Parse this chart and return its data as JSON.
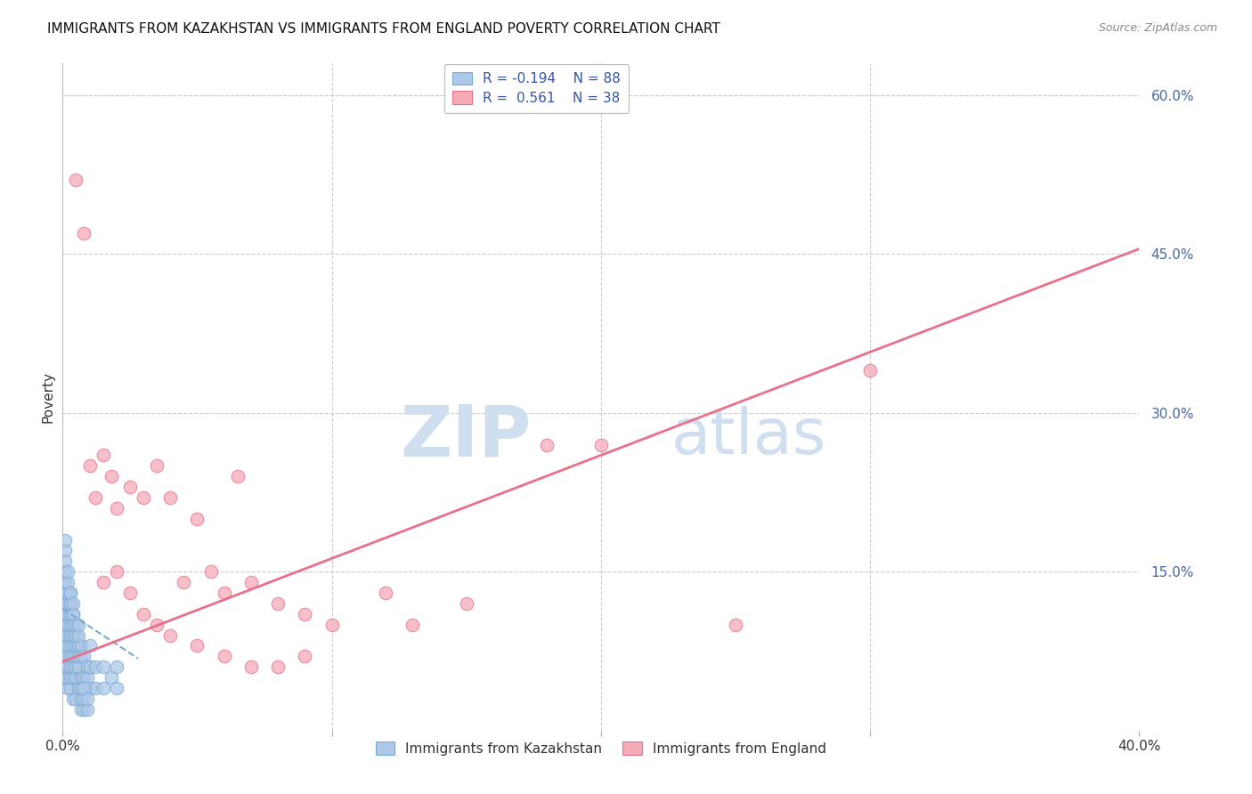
{
  "title": "IMMIGRANTS FROM KAZAKHSTAN VS IMMIGRANTS FROM ENGLAND POVERTY CORRELATION CHART",
  "source": "Source: ZipAtlas.com",
  "ylabel": "Poverty",
  "yticks": [
    0.0,
    0.15,
    0.3,
    0.45,
    0.6
  ],
  "ytick_labels": [
    "",
    "15.0%",
    "30.0%",
    "45.0%",
    "60.0%"
  ],
  "xlim": [
    0.0,
    0.4
  ],
  "ylim": [
    0.0,
    0.63
  ],
  "series1_label": "Immigrants from Kazakhstan",
  "series2_label": "Immigrants from England",
  "color1": "#adc8e8",
  "color2": "#f5aab8",
  "color1_edge": "#7aaad0",
  "color2_edge": "#e8708a",
  "trend1_color": "#7aaad0",
  "trend2_color": "#e8708a",
  "watermark_zip": "ZIP",
  "watermark_atlas": "atlas",
  "watermark_color": "#d0dff0",
  "title_fontsize": 11,
  "background_color": "#ffffff",
  "grid_color": "#cccccc",
  "kazakh_x": [
    0.001,
    0.001,
    0.001,
    0.001,
    0.001,
    0.001,
    0.001,
    0.001,
    0.001,
    0.001,
    0.002,
    0.002,
    0.002,
    0.002,
    0.002,
    0.002,
    0.002,
    0.002,
    0.002,
    0.002,
    0.003,
    0.003,
    0.003,
    0.003,
    0.003,
    0.003,
    0.003,
    0.003,
    0.003,
    0.003,
    0.004,
    0.004,
    0.004,
    0.004,
    0.004,
    0.004,
    0.004,
    0.004,
    0.005,
    0.005,
    0.005,
    0.005,
    0.005,
    0.005,
    0.006,
    0.006,
    0.006,
    0.006,
    0.007,
    0.007,
    0.007,
    0.008,
    0.008,
    0.009,
    0.009,
    0.01,
    0.01,
    0.01,
    0.012,
    0.012,
    0.015,
    0.015,
    0.018,
    0.02,
    0.02,
    0.001,
    0.001,
    0.001,
    0.001,
    0.001,
    0.002,
    0.002,
    0.002,
    0.003,
    0.003,
    0.004,
    0.004,
    0.005,
    0.006,
    0.006,
    0.007,
    0.007,
    0.007,
    0.008,
    0.008,
    0.008,
    0.009,
    0.009
  ],
  "kazakh_y": [
    0.05,
    0.06,
    0.07,
    0.08,
    0.09,
    0.1,
    0.11,
    0.12,
    0.13,
    0.14,
    0.04,
    0.05,
    0.06,
    0.07,
    0.08,
    0.09,
    0.1,
    0.11,
    0.12,
    0.13,
    0.04,
    0.05,
    0.06,
    0.07,
    0.08,
    0.09,
    0.1,
    0.11,
    0.12,
    0.13,
    0.03,
    0.05,
    0.06,
    0.07,
    0.08,
    0.09,
    0.1,
    0.11,
    0.03,
    0.05,
    0.06,
    0.07,
    0.08,
    0.09,
    0.04,
    0.06,
    0.07,
    0.08,
    0.05,
    0.07,
    0.08,
    0.05,
    0.07,
    0.05,
    0.06,
    0.04,
    0.06,
    0.08,
    0.04,
    0.06,
    0.04,
    0.06,
    0.05,
    0.04,
    0.06,
    0.14,
    0.15,
    0.16,
    0.17,
    0.18,
    0.13,
    0.14,
    0.15,
    0.12,
    0.13,
    0.11,
    0.12,
    0.1,
    0.09,
    0.1,
    0.02,
    0.03,
    0.04,
    0.02,
    0.03,
    0.04,
    0.02,
    0.03
  ],
  "england_x": [
    0.005,
    0.008,
    0.01,
    0.012,
    0.015,
    0.018,
    0.02,
    0.025,
    0.03,
    0.035,
    0.04,
    0.045,
    0.05,
    0.055,
    0.06,
    0.065,
    0.07,
    0.08,
    0.09,
    0.1,
    0.12,
    0.13,
    0.15,
    0.18,
    0.2,
    0.25,
    0.3,
    0.015,
    0.02,
    0.025,
    0.03,
    0.035,
    0.04,
    0.05,
    0.06,
    0.07,
    0.08,
    0.09
  ],
  "england_y": [
    0.52,
    0.47,
    0.25,
    0.22,
    0.26,
    0.24,
    0.21,
    0.23,
    0.22,
    0.25,
    0.22,
    0.14,
    0.2,
    0.15,
    0.13,
    0.24,
    0.14,
    0.12,
    0.11,
    0.1,
    0.13,
    0.1,
    0.12,
    0.27,
    0.27,
    0.1,
    0.34,
    0.14,
    0.15,
    0.13,
    0.11,
    0.1,
    0.09,
    0.08,
    0.07,
    0.06,
    0.06,
    0.07
  ],
  "trend1_x": [
    0.0,
    0.028
  ],
  "trend1_y": [
    0.115,
    0.068
  ],
  "trend2_x": [
    0.0,
    0.4
  ],
  "trend2_y": [
    0.065,
    0.455
  ]
}
